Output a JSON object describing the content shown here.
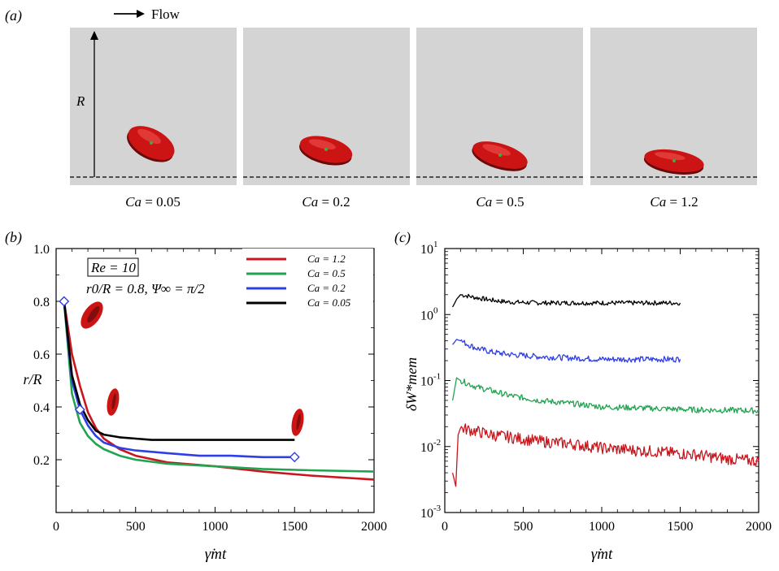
{
  "panel_a": {
    "label": "(a)",
    "flow_label": "Flow",
    "axis_label": "R",
    "frames": [
      {
        "prefix": "Ca",
        "value": "= 0.05"
      },
      {
        "prefix": "Ca",
        "value": "= 0.2"
      },
      {
        "prefix": "Ca",
        "value": "= 0.5"
      },
      {
        "prefix": "Ca",
        "value": "= 1.2"
      }
    ],
    "colors": {
      "background": "#d4d4d4",
      "cell": "#cc1414",
      "marker": "#3bb03b"
    }
  },
  "chart_data": [
    {
      "panel_label": "(b)",
      "type": "line",
      "xlabel": "γ̇mt",
      "ylabel": "r/R",
      "xlim": [
        0,
        2000
      ],
      "ylim": [
        0.0,
        1.0
      ],
      "xticks": [
        "0",
        "500",
        "1000",
        "1500",
        "2000"
      ],
      "yticks": [
        "0.2",
        "0.4",
        "0.6",
        "0.8",
        "1.0"
      ],
      "annotations": {
        "re_box": "Re = 10",
        "params": "r0/R = 0.8, Ψ∞ = π/2"
      },
      "legend_placement": "top-right",
      "series": [
        {
          "name": "Ca = 1.2",
          "color": "#c8161d",
          "x": [
            50,
            100,
            150,
            200,
            250,
            300,
            400,
            500,
            700,
            1000,
            1300,
            1600,
            2000
          ],
          "y": [
            0.8,
            0.6,
            0.48,
            0.38,
            0.32,
            0.28,
            0.24,
            0.215,
            0.19,
            0.175,
            0.155,
            0.14,
            0.125
          ]
        },
        {
          "name": "Ca = 0.5",
          "color": "#22a352",
          "x": [
            50,
            100,
            150,
            200,
            250,
            300,
            400,
            500,
            700,
            1000,
            1300,
            1600,
            2000
          ],
          "y": [
            0.8,
            0.45,
            0.34,
            0.29,
            0.26,
            0.24,
            0.215,
            0.2,
            0.185,
            0.175,
            0.165,
            0.16,
            0.155
          ]
        },
        {
          "name": "Ca = 0.2",
          "color": "#2e3fe6",
          "x": [
            50,
            100,
            150,
            200,
            250,
            300,
            400,
            500,
            700,
            900,
            1100,
            1300,
            1500
          ],
          "y": [
            0.8,
            0.5,
            0.39,
            0.33,
            0.29,
            0.265,
            0.245,
            0.235,
            0.225,
            0.215,
            0.215,
            0.21,
            0.21
          ]
        },
        {
          "name": "Ca = 0.05",
          "color": "#000000",
          "x": [
            50,
            100,
            150,
            200,
            250,
            300,
            400,
            500,
            600,
            800,
            1000,
            1200,
            1500
          ],
          "y": [
            0.8,
            0.52,
            0.41,
            0.35,
            0.31,
            0.295,
            0.285,
            0.28,
            0.275,
            0.275,
            0.275,
            0.275,
            0.275
          ]
        }
      ],
      "markers": [
        {
          "x": 50,
          "y": 0.8
        },
        {
          "x": 150,
          "y": 0.39
        },
        {
          "x": 1500,
          "y": 0.21
        }
      ]
    },
    {
      "panel_label": "(c)",
      "type": "line",
      "xlabel": "γ̇mt",
      "ylabel": "δW*mem",
      "xlim": [
        0,
        2000
      ],
      "ylim_log10": [
        -3,
        1
      ],
      "xticks": [
        "0",
        "500",
        "1000",
        "1500",
        "2000"
      ],
      "yticks": [
        "10",
        "10",
        "10",
        "10",
        "10"
      ],
      "ytick_exponents": [
        "-3",
        "-2",
        "-1",
        "0",
        "1"
      ],
      "series": [
        {
          "name": "Ca = 0.05",
          "color": "#000000",
          "x": [
            50,
            75,
            100,
            150,
            200,
            300,
            400,
            600,
            800,
            1000,
            1200,
            1500
          ],
          "y": [
            1.3,
            1.7,
            2.0,
            1.9,
            1.8,
            1.65,
            1.55,
            1.5,
            1.5,
            1.5,
            1.5,
            1.5
          ]
        },
        {
          "name": "Ca = 0.2",
          "color": "#2e3fe6",
          "x": [
            50,
            75,
            100,
            150,
            200,
            300,
            400,
            600,
            800,
            1000,
            1200,
            1500
          ],
          "y": [
            0.35,
            0.42,
            0.4,
            0.35,
            0.31,
            0.27,
            0.25,
            0.23,
            0.22,
            0.21,
            0.21,
            0.21
          ]
        },
        {
          "name": "Ca = 0.5",
          "color": "#22a352",
          "x": [
            50,
            75,
            100,
            150,
            200,
            300,
            400,
            600,
            800,
            1000,
            1300,
            1600,
            2000
          ],
          "y": [
            0.05,
            0.11,
            0.1,
            0.09,
            0.08,
            0.07,
            0.06,
            0.05,
            0.045,
            0.04,
            0.038,
            0.036,
            0.035
          ]
        },
        {
          "name": "Ca = 1.2",
          "color": "#c8161d",
          "x": [
            50,
            70,
            85,
            100,
            150,
            200,
            300,
            400,
            600,
            800,
            1000,
            1300,
            1600,
            1800,
            2000
          ],
          "y": [
            0.004,
            0.0025,
            0.015,
            0.019,
            0.018,
            0.017,
            0.015,
            0.014,
            0.012,
            0.011,
            0.0095,
            0.0085,
            0.0075,
            0.0065,
            0.006
          ]
        }
      ]
    }
  ]
}
